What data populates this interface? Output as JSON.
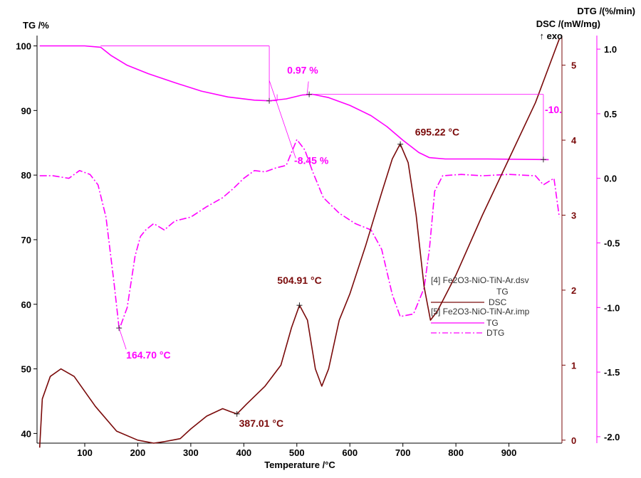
{
  "chart_data": {
    "type": "line",
    "xlabel": "Temperature /°C",
    "xlim": [
      10,
      1000
    ],
    "x_ticks": [
      100,
      200,
      300,
      400,
      500,
      600,
      700,
      800,
      900
    ],
    "axes": {
      "tg": {
        "label": "TG /%",
        "ylim": [
          38.5,
          100.5
        ],
        "ticks": [
          40,
          50,
          60,
          70,
          80,
          90,
          100
        ],
        "color": "#000000"
      },
      "dsc": {
        "label": "DSC /(mW/mg)",
        "exo_label": "↑ exo",
        "ylim": [
          -0.04,
          5.3
        ],
        "ticks": [
          0,
          1,
          2,
          3,
          4,
          5
        ],
        "color": "#7a0a0a"
      },
      "dtg": {
        "label": "DTG /(%/min)",
        "ylim": [
          -2.05,
          1.05
        ],
        "ticks": [
          1.0,
          0.5,
          0.0,
          -0.5,
          -1.0,
          -1.5,
          -2.0
        ],
        "tick_labels": [
          "1.0",
          "0.5",
          "0.0",
          "-0.5",
          "-1.0",
          "-1.5",
          "-2.0"
        ],
        "color": "#ff00ff"
      }
    },
    "series": [
      {
        "name": "TG",
        "file": "[5] Fe2O3-NiO-TiN-Ar.imp",
        "axis": "tg",
        "color": "#ff00ff",
        "style": "solid",
        "points": [
          [
            15,
            100
          ],
          [
            100,
            100
          ],
          [
            130,
            99.8
          ],
          [
            150,
            98.5
          ],
          [
            180,
            97
          ],
          [
            220,
            95.7
          ],
          [
            270,
            94.3
          ],
          [
            320,
            93
          ],
          [
            370,
            92.1
          ],
          [
            420,
            91.6
          ],
          [
            448,
            91.5
          ],
          [
            480,
            91.8
          ],
          [
            510,
            92.4
          ],
          [
            530,
            92.5
          ],
          [
            560,
            92
          ],
          [
            600,
            90.8
          ],
          [
            640,
            89.2
          ],
          [
            670,
            87.5
          ],
          [
            700,
            85.4
          ],
          [
            730,
            83.5
          ],
          [
            750,
            82.7
          ],
          [
            780,
            82.5
          ],
          [
            860,
            82.5
          ],
          [
            975,
            82.4
          ]
        ]
      },
      {
        "name": "DTG",
        "file": "[5] Fe2O3-NiO-TiN-Ar.imp",
        "axis": "dtg",
        "color": "#ff00ff",
        "style": "dashdot",
        "points": [
          [
            15,
            0.02
          ],
          [
            40,
            0.02
          ],
          [
            70,
            0.0
          ],
          [
            90,
            0.06
          ],
          [
            110,
            0.03
          ],
          [
            125,
            -0.05
          ],
          [
            140,
            -0.3
          ],
          [
            155,
            -0.8
          ],
          [
            165,
            -1.17
          ],
          [
            180,
            -1.0
          ],
          [
            195,
            -0.6
          ],
          [
            205,
            -0.45
          ],
          [
            215,
            -0.4
          ],
          [
            230,
            -0.35
          ],
          [
            250,
            -0.4
          ],
          [
            270,
            -0.33
          ],
          [
            300,
            -0.3
          ],
          [
            330,
            -0.22
          ],
          [
            360,
            -0.15
          ],
          [
            380,
            -0.08
          ],
          [
            400,
            0.0
          ],
          [
            420,
            0.06
          ],
          [
            440,
            0.05
          ],
          [
            460,
            0.08
          ],
          [
            480,
            0.1
          ],
          [
            500,
            0.3
          ],
          [
            515,
            0.22
          ],
          [
            530,
            0.05
          ],
          [
            550,
            -0.15
          ],
          [
            580,
            -0.27
          ],
          [
            610,
            -0.35
          ],
          [
            640,
            -0.4
          ],
          [
            660,
            -0.55
          ],
          [
            680,
            -0.9
          ],
          [
            695,
            -1.07
          ],
          [
            720,
            -1.05
          ],
          [
            740,
            -0.85
          ],
          [
            750,
            -0.55
          ],
          [
            760,
            -0.1
          ],
          [
            775,
            0.02
          ],
          [
            810,
            0.03
          ],
          [
            850,
            0.02
          ],
          [
            900,
            0.03
          ],
          [
            950,
            0.02
          ],
          [
            965,
            -0.05
          ],
          [
            985,
            0.0
          ],
          [
            995,
            -0.3
          ]
        ]
      },
      {
        "name": "DSC",
        "file": "[4] Fe2O3-NiO-TiN-Ar.dsv",
        "axis": "dsc",
        "color": "#7a0a0a",
        "style": "solid",
        "points": [
          [
            15,
            -0.1
          ],
          [
            20,
            0.55
          ],
          [
            35,
            0.85
          ],
          [
            55,
            0.95
          ],
          [
            80,
            0.85
          ],
          [
            120,
            0.45
          ],
          [
            160,
            0.12
          ],
          [
            200,
            0.0
          ],
          [
            230,
            -0.04
          ],
          [
            250,
            -0.02
          ],
          [
            265,
            0.0
          ],
          [
            280,
            0.02
          ],
          [
            300,
            0.15
          ],
          [
            330,
            0.32
          ],
          [
            360,
            0.42
          ],
          [
            375,
            0.38
          ],
          [
            387,
            0.35
          ],
          [
            405,
            0.48
          ],
          [
            440,
            0.72
          ],
          [
            470,
            1.0
          ],
          [
            490,
            1.5
          ],
          [
            505,
            1.8
          ],
          [
            520,
            1.6
          ],
          [
            535,
            0.95
          ],
          [
            547,
            0.72
          ],
          [
            560,
            0.95
          ],
          [
            580,
            1.6
          ],
          [
            600,
            1.95
          ],
          [
            630,
            2.6
          ],
          [
            660,
            3.3
          ],
          [
            680,
            3.75
          ],
          [
            695,
            3.95
          ],
          [
            710,
            3.7
          ],
          [
            725,
            3.0
          ],
          [
            740,
            2.05
          ],
          [
            752,
            1.6
          ],
          [
            765,
            1.72
          ],
          [
            800,
            2.2
          ],
          [
            850,
            3.0
          ],
          [
            900,
            3.75
          ],
          [
            950,
            4.5
          ],
          [
            995,
            5.35
          ]
        ]
      }
    ],
    "annotations": [
      {
        "text": "164.70 °C",
        "color": "#ff00ff",
        "series": "DTG",
        "x": 164.7
      },
      {
        "text": "387.01 °C",
        "color": "#7a0a0a",
        "series": "DSC",
        "x": 387.01
      },
      {
        "text": "504.91 °C",
        "color": "#7a0a0a",
        "series": "DSC",
        "x": 504.91
      },
      {
        "text": "695.22 °C",
        "color": "#7a0a0a",
        "series": "DSC",
        "x": 695.22
      },
      {
        "text": "-8.45 %",
        "color": "#ff00ff",
        "series": "TG"
      },
      {
        "text": "0.97 %",
        "color": "#ff00ff",
        "series": "TG"
      },
      {
        "text": "-10.",
        "color": "#ff00ff",
        "series": "TG"
      }
    ],
    "legend": {
      "placement": "right",
      "groups": [
        {
          "title": "[4] Fe2O3-NiO-TiN-Ar.dsv",
          "entries": [
            {
              "label": "TG",
              "color": "#7a0a0a",
              "style": "none"
            },
            {
              "label": "DSC",
              "color": "#7a0a0a",
              "style": "solid"
            }
          ]
        },
        {
          "title": "[5] Fe2O3-NiO-TiN-Ar.imp",
          "entries": [
            {
              "label": "TG",
              "color": "#ff00ff",
              "style": "solid"
            },
            {
              "label": "DTG",
              "color": "#ff00ff",
              "style": "dashdot"
            }
          ]
        }
      ]
    }
  }
}
